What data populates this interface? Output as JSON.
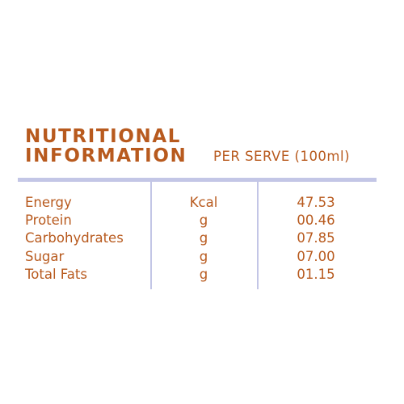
{
  "colors": {
    "text": "#b85a1e",
    "rules": "#c3c6e6"
  },
  "title": {
    "line1": "NUTRITIONAL",
    "line2": "INFORMATION"
  },
  "serving_label": "PER SERVE (100ml)",
  "rows": [
    {
      "name": "Energy",
      "unit": "Kcal",
      "value": "47.53"
    },
    {
      "name": "Protein",
      "unit": "g",
      "value": "00.46"
    },
    {
      "name": "Carbohydrates",
      "unit": "g",
      "value": "07.85"
    },
    {
      "name": "Sugar",
      "unit": "g",
      "value": "07.00"
    },
    {
      "name": "Total Fats",
      "unit": "g",
      "value": "01.15"
    }
  ]
}
